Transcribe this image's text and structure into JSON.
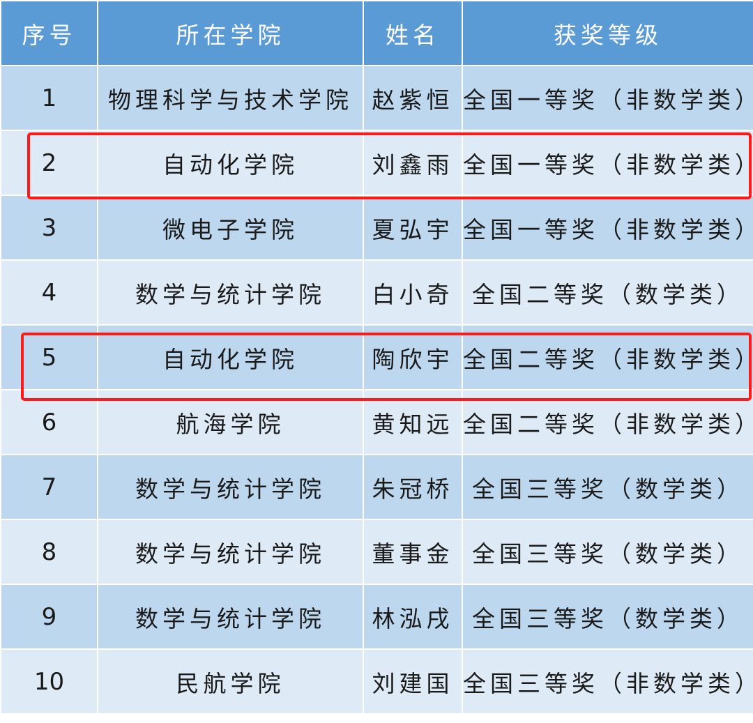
{
  "headers": [
    "序号",
    "所在学院",
    "姓名",
    "获奖等级"
  ],
  "rows": [
    {
      "no": "1",
      "college": "物理科学与技术学院",
      "name": "赵紫恒",
      "award": "全国一等奖（非数学类）",
      "highlighted": false
    },
    {
      "no": "2",
      "college": "自动化学院",
      "name": "刘鑫雨",
      "award": "全国一等奖（非数学类）",
      "highlighted": true
    },
    {
      "no": "3",
      "college": "微电子学院",
      "name": "夏弘宇",
      "award": "全国一等奖（非数学类）",
      "highlighted": false
    },
    {
      "no": "4",
      "college": "数学与统计学院",
      "name": "白小奇",
      "award": "全国二等奖（数学类）",
      "highlighted": false
    },
    {
      "no": "5",
      "college": "自动化学院",
      "name": "陶欣宇",
      "award": "全国二等奖（非数学类）",
      "highlighted": true
    },
    {
      "no": "6",
      "college": "航海学院",
      "name": "黄知远",
      "award": "全国二等奖（非数学类）",
      "highlighted": false
    },
    {
      "no": "7",
      "college": "数学与统计学院",
      "name": "朱冠桥",
      "award": "全国三等奖（数学类）",
      "highlighted": false
    },
    {
      "no": "8",
      "college": "数学与统计学院",
      "name": "董事金",
      "award": "全国三等奖（数学类）",
      "highlighted": false
    },
    {
      "no": "9",
      "college": "数学与统计学院",
      "name": "林泓戌",
      "award": "全国三等奖（数学类）",
      "highlighted": false
    },
    {
      "no": "10",
      "college": "民航学院",
      "name": "刘建国",
      "award": "全国三等奖（非数学类）",
      "highlighted": false
    }
  ],
  "colors": {
    "header": "#5b9bd5",
    "row_odd": "#bdd7ee",
    "row_even": "#deeaf6",
    "highlight": "#ff1a1a"
  }
}
